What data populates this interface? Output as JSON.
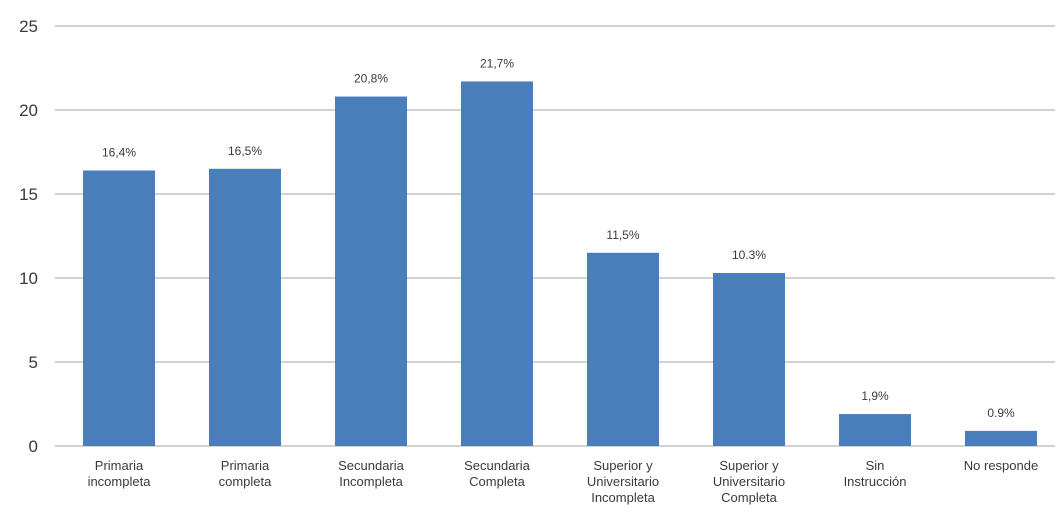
{
  "chart_data": {
    "type": "bar",
    "categories": [
      [
        "Primaria",
        "incompleta"
      ],
      [
        "Primaria",
        "completa"
      ],
      [
        "Secundaria",
        "Incompleta"
      ],
      [
        "Secundaria",
        "Completa"
      ],
      [
        "Superior y",
        "Universitario",
        "Incompleta"
      ],
      [
        "Superior y",
        "Universitario",
        "Completa"
      ],
      [
        "Sin",
        "Instrucción"
      ],
      [
        "No responde"
      ]
    ],
    "values": [
      16.4,
      16.5,
      20.8,
      21.7,
      11.5,
      10.3,
      1.9,
      0.9
    ],
    "data_labels": [
      "16,4%",
      "16,5%",
      "20,8%",
      "21,7%",
      "11,5%",
      "10.3%",
      "1,9%",
      "0.9%"
    ],
    "ylim": [
      0,
      25
    ],
    "yticks": [
      0,
      5,
      10,
      15,
      20,
      25
    ],
    "grid": true,
    "legend": "none",
    "title": "",
    "xlabel": "",
    "ylabel": ""
  },
  "colors": {
    "bar": "#4a7ebb",
    "grid": "#a6a6a6",
    "text": "#3a3a3a"
  }
}
